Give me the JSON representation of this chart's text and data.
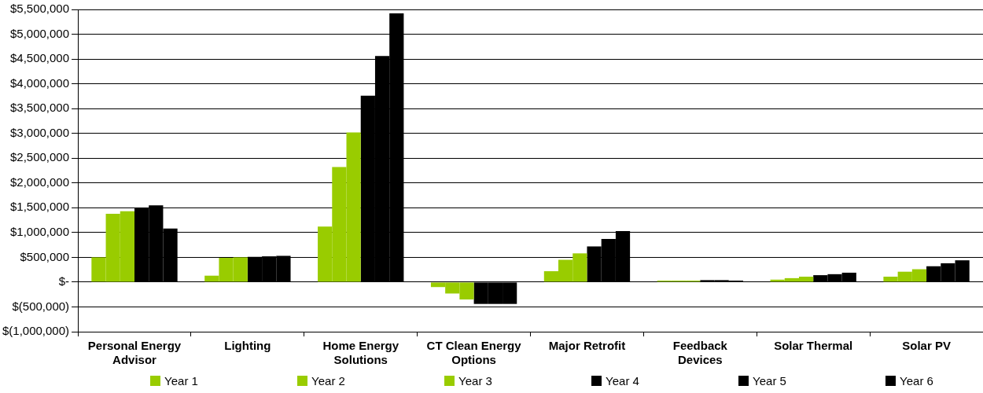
{
  "chart_data": {
    "type": "bar",
    "categories": [
      "Personal Energy Advisor",
      "Lighting",
      "Home Energy Solutions",
      "CT Clean Energy Options",
      "Major Retrofit",
      "Feedback Devices",
      "Solar Thermal",
      "Solar PV"
    ],
    "series": [
      {
        "name": "Year 1",
        "color": "#99cc00",
        "values": [
          500000,
          130000,
          1120000,
          -100000,
          220000,
          30000,
          50000,
          110000
        ]
      },
      {
        "name": "Year 2",
        "color": "#99cc00",
        "values": [
          1380000,
          490000,
          2320000,
          -230000,
          450000,
          30000,
          80000,
          210000
        ]
      },
      {
        "name": "Year 3",
        "color": "#99cc00",
        "values": [
          1430000,
          500000,
          3020000,
          -350000,
          580000,
          30000,
          110000,
          260000
        ]
      },
      {
        "name": "Year 4",
        "color": "#000000",
        "values": [
          1490000,
          510000,
          3760000,
          -440000,
          720000,
          40000,
          140000,
          320000
        ]
      },
      {
        "name": "Year 5",
        "color": "#000000",
        "values": [
          1550000,
          520000,
          4560000,
          -440000,
          870000,
          40000,
          160000,
          380000
        ]
      },
      {
        "name": "Year 6",
        "color": "#000000",
        "values": [
          1080000,
          530000,
          5420000,
          -440000,
          1030000,
          30000,
          190000,
          440000
        ]
      }
    ],
    "ylim": [
      -1000000,
      5500000
    ],
    "yticks": [
      {
        "value": -1000000,
        "label": "$(1,000,000)"
      },
      {
        "value": -500000,
        "label": "$(500,000)"
      },
      {
        "value": 0,
        "label": "$-"
      },
      {
        "value": 500000,
        "label": "$500,000"
      },
      {
        "value": 1000000,
        "label": "$1,000,000"
      },
      {
        "value": 1500000,
        "label": "$1,500,000"
      },
      {
        "value": 2000000,
        "label": "$2,000,000"
      },
      {
        "value": 2500000,
        "label": "$2,500,000"
      },
      {
        "value": 3000000,
        "label": "$3,000,000"
      },
      {
        "value": 3500000,
        "label": "$3,500,000"
      },
      {
        "value": 4000000,
        "label": "$4,000,000"
      },
      {
        "value": 4500000,
        "label": "$4,500,000"
      },
      {
        "value": 5000000,
        "label": "$5,000,000"
      },
      {
        "value": 5500000,
        "label": "$5,500,000"
      }
    ],
    "grid": "y",
    "legend": "bottom"
  }
}
